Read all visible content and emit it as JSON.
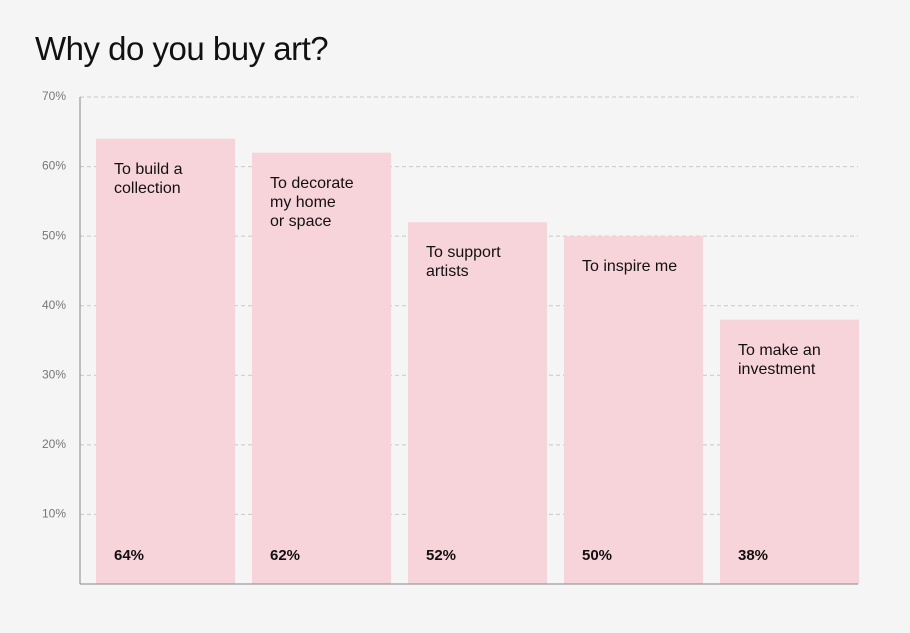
{
  "chart_data": {
    "type": "bar",
    "title": "Why do you buy art?",
    "categories": [
      "To build a\ncollection",
      "To decorate\nmy home\nor space",
      "To support\nartists",
      "To inspire me",
      "To make an\ninvestment"
    ],
    "values": [
      64,
      62,
      52,
      50,
      38
    ],
    "value_labels": [
      "64%",
      "62%",
      "52%",
      "50%",
      "38%"
    ],
    "color": "#f7d4da",
    "ylim": [
      0,
      70
    ],
    "yticks": [
      {
        "value": 10,
        "label": "10%"
      },
      {
        "value": 20,
        "label": "20%"
      },
      {
        "value": 30,
        "label": "30%"
      },
      {
        "value": 40,
        "label": "40%"
      },
      {
        "value": 50,
        "label": "50%"
      },
      {
        "value": 60,
        "label": "60%"
      },
      {
        "value": 70,
        "label": "70%"
      }
    ],
    "grid": true
  }
}
